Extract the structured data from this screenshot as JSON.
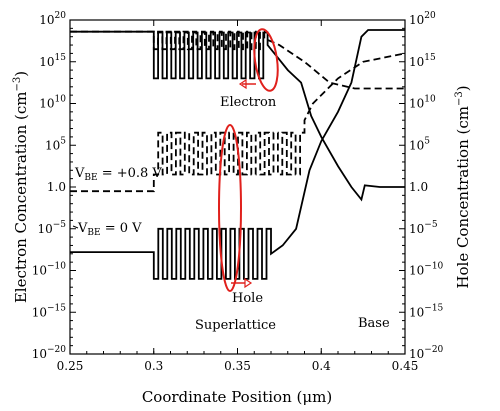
{
  "chart_data": {
    "type": "line",
    "title": "",
    "xlabel": "Coordinate Position (μm)",
    "ylabel_left": "Electron Concentration (cm",
    "ylabel_right": "Hole Concentration (cm",
    "ylabel_exponent": "−3",
    "ylabel_close": ")",
    "xlim": [
      0.25,
      0.45
    ],
    "ylim_log10": [
      -20,
      20
    ],
    "yscale": "log",
    "xticks": [
      "0.25",
      "0.3",
      "0.35",
      "0.4",
      "0.45"
    ],
    "yticks": [
      {
        "base": "10",
        "exp": "20"
      },
      {
        "base": "10",
        "exp": "15"
      },
      {
        "base": "10",
        "exp": "10"
      },
      {
        "base": "10",
        "exp": "5"
      },
      {
        "base": "1.0",
        "exp": ""
      },
      {
        "base": "10",
        "exp": "−5"
      },
      {
        "base": "10",
        "exp": "−10"
      },
      {
        "base": "10",
        "exp": "−15"
      },
      {
        "base": "10",
        "exp": "−20"
      }
    ],
    "annotations": {
      "electron": "Electron",
      "hole": "Hole",
      "superlattice": "Superlattice",
      "base": "Base",
      "vbe_high": "V",
      "vbe_high_sub": "BE",
      "vbe_high_val": " = +0.8 V",
      "vbe_zero": "V",
      "vbe_zero_sub": "BE",
      "vbe_zero_val": " = 0 V"
    },
    "colors": {
      "curve": "#000000",
      "highlight": "#e0201c"
    },
    "series": [
      {
        "style": "solid",
        "superlattice": {
          "x_start": 0.3,
          "x_end": 0.368,
          "periods": 13,
          "low_log10": 13,
          "high_log10": 18.5
        },
        "points": [
          [
            0.25,
            18.6
          ],
          [
            0.3,
            18.6
          ],
          [
            0.368,
            17.0
          ],
          [
            0.372,
            16.0
          ],
          [
            0.38,
            14.0
          ],
          [
            0.388,
            12.5
          ],
          [
            0.394,
            8.5
          ],
          [
            0.4,
            6.0
          ],
          [
            0.41,
            2.5
          ],
          [
            0.418,
            0.0
          ],
          [
            0.424,
            -1.5
          ],
          [
            0.426,
            0.2
          ],
          [
            0.435,
            0.0
          ],
          [
            0.45,
            0.0
          ]
        ]
      },
      {
        "style": "dashed",
        "superlattice": {
          "x_start": 0.3,
          "x_end": 0.366,
          "periods": 13,
          "low_log10": 16.5,
          "high_log10": 18.6
        },
        "points": [
          [
            0.25,
            18.6
          ],
          [
            0.3,
            18.6
          ],
          [
            0.366,
            17.8
          ],
          [
            0.375,
            17.0
          ],
          [
            0.39,
            15.0
          ],
          [
            0.405,
            12.5
          ],
          [
            0.42,
            11.8
          ],
          [
            0.45,
            11.8
          ]
        ]
      },
      {
        "style": "dashed",
        "superlattice": {
          "x_start": 0.3,
          "x_end": 0.39,
          "periods": 17,
          "low_log10": 1.5,
          "high_log10": 6.5
        },
        "points": [
          [
            0.25,
            -0.5
          ],
          [
            0.3,
            1.5
          ],
          [
            0.39,
            8.0
          ],
          [
            0.395,
            10.0
          ],
          [
            0.41,
            13.0
          ],
          [
            0.425,
            15.0
          ],
          [
            0.45,
            16.0
          ]
        ]
      },
      {
        "style": "solid",
        "superlattice": {
          "x_start": 0.3,
          "x_end": 0.37,
          "periods": 13,
          "low_log10": -11,
          "high_log10": -5
        },
        "points": [
          [
            0.25,
            -7.8
          ],
          [
            0.3,
            -7.8
          ],
          [
            0.37,
            -8.0
          ],
          [
            0.377,
            -7.0
          ],
          [
            0.385,
            -5.0
          ],
          [
            0.393,
            2.0
          ],
          [
            0.4,
            5.5
          ],
          [
            0.41,
            9.0
          ],
          [
            0.418,
            12.5
          ],
          [
            0.424,
            18.0
          ],
          [
            0.428,
            18.8
          ],
          [
            0.45,
            18.8
          ]
        ]
      }
    ]
  }
}
